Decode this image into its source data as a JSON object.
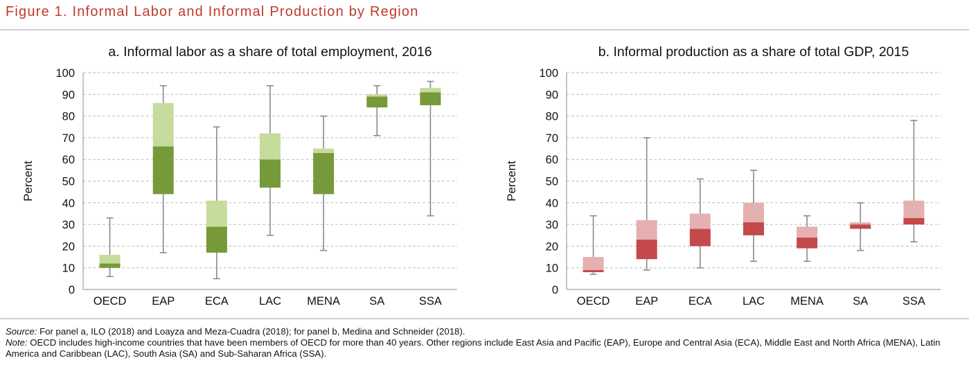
{
  "figure_title": "Figure 1. Informal Labor and Informal Production by Region",
  "colors": {
    "title": "#c0392b",
    "panel_a_upper": "#c5dc9c",
    "panel_a_lower": "#76993a",
    "panel_b_upper": "#e4b0b0",
    "panel_b_lower": "#c4494b",
    "whisker": "#8a8a8a",
    "grid": "#bdbdbd"
  },
  "chart_data": [
    {
      "type": "box",
      "title": "a. Informal labor as a share of total employment, 2016",
      "xlabel": "",
      "ylabel": "Percent",
      "ylim": [
        0,
        100
      ],
      "yticks": [
        0,
        10,
        20,
        30,
        40,
        50,
        60,
        70,
        80,
        90,
        100
      ],
      "grid": true,
      "categories": [
        "OECD",
        "EAP",
        "ECA",
        "LAC",
        "MENA",
        "SA",
        "SSA"
      ],
      "boxes": [
        {
          "min": 6,
          "q1": 10,
          "median": 12,
          "q3": 16,
          "max": 33
        },
        {
          "min": 17,
          "q1": 44,
          "median": 66,
          "q3": 86,
          "max": 94
        },
        {
          "min": 5,
          "q1": 17,
          "median": 29,
          "q3": 41,
          "max": 75
        },
        {
          "min": 25,
          "q1": 47,
          "median": 60,
          "q3": 72,
          "max": 94
        },
        {
          "min": 18,
          "q1": 44,
          "median": 63,
          "q3": 65,
          "max": 80
        },
        {
          "min": 71,
          "q1": 84,
          "median": 89,
          "q3": 90,
          "max": 94
        },
        {
          "min": 34,
          "q1": 85,
          "median": 91,
          "q3": 93,
          "max": 96
        }
      ]
    },
    {
      "type": "box",
      "title": "b. Informal production as a share of total GDP, 2015",
      "xlabel": "",
      "ylabel": "Percent",
      "ylim": [
        0,
        100
      ],
      "yticks": [
        0,
        10,
        20,
        30,
        40,
        50,
        60,
        70,
        80,
        90,
        100
      ],
      "grid": true,
      "categories": [
        "OECD",
        "EAP",
        "ECA",
        "LAC",
        "MENA",
        "SA",
        "SSA"
      ],
      "boxes": [
        {
          "min": 7,
          "q1": 8,
          "median": 9,
          "q3": 15,
          "max": 34
        },
        {
          "min": 9,
          "q1": 14,
          "median": 23,
          "q3": 32,
          "max": 70
        },
        {
          "min": 10,
          "q1": 20,
          "median": 28,
          "q3": 35,
          "max": 51
        },
        {
          "min": 13,
          "q1": 25,
          "median": 31,
          "q3": 40,
          "max": 55
        },
        {
          "min": 13,
          "q1": 19,
          "median": 24,
          "q3": 29,
          "max": 34
        },
        {
          "min": 18,
          "q1": 28,
          "median": 30,
          "q3": 31,
          "max": 40
        },
        {
          "min": 22,
          "q1": 30,
          "median": 33,
          "q3": 41,
          "max": 78
        }
      ]
    }
  ],
  "notes": {
    "source_label": "Source:",
    "source_text": " For panel a, ILO (2018) and Loayza and Meza-Cuadra (2018); for panel b, Medina and Schneider (2018).",
    "note_label": "Note:",
    "note_text": " OECD includes high-income countries that have been members of OECD for more than 40 years. Other regions include East Asia and Pacific (EAP), Europe and Central Asia (ECA), Middle East and North Africa (MENA), Latin America and Caribbean (LAC), South Asia (SA) and Sub-Saharan Africa (SSA)."
  }
}
